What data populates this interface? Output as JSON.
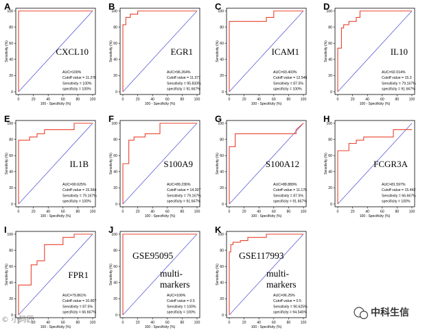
{
  "chart_data": [
    {
      "type": "line",
      "panel": "A",
      "name": "CXCL10",
      "stats": [
        "AUC=100%",
        "Cutoff value = 11.278",
        "Sensitivity = 100%",
        "specificity = 100%"
      ],
      "x": [
        0,
        0,
        100
      ],
      "y": [
        0,
        100,
        100
      ]
    },
    {
      "type": "line",
      "panel": "B",
      "name": "EGR1",
      "stats": [
        "AUC=96.264%",
        "Cutoff value = 11.377",
        "Sensitivity = 95.833%",
        "specificity = 91.667%"
      ],
      "x": [
        0,
        0,
        4,
        4,
        10,
        10,
        20,
        20,
        100
      ],
      "y": [
        0,
        83,
        83,
        92,
        92,
        96,
        96,
        100,
        100
      ]
    },
    {
      "type": "line",
      "panel": "C",
      "name": "ICAM1",
      "stats": [
        "AUC=93.403%",
        "Cutoff value = 12.546",
        "Sensitivity = 87.5%",
        "specificity = 100%"
      ],
      "x": [
        0,
        0,
        50,
        50,
        60,
        60,
        100
      ],
      "y": [
        0,
        87,
        87,
        92,
        92,
        100,
        100
      ]
    },
    {
      "type": "line",
      "panel": "D",
      "name": "IL10",
      "stats": [
        "AUC=92.014%",
        "Cutoff value = 15.3",
        "Sensitivity = 79.167%",
        "specificity = 91.667%"
      ],
      "x": [
        0,
        0,
        5,
        5,
        8,
        8,
        15,
        15,
        20,
        20,
        25,
        25,
        30,
        30,
        100
      ],
      "y": [
        0,
        54,
        54,
        79,
        79,
        83,
        83,
        87,
        87,
        87,
        87,
        92,
        92,
        100,
        100
      ]
    },
    {
      "type": "line",
      "panel": "E",
      "name": "IL1B",
      "stats": [
        "AUC=90.625%",
        "Cutoff value = 15.564",
        "Sensitivity = 79.167%",
        "specificity = 100%"
      ],
      "x": [
        0,
        0,
        15,
        15,
        25,
        25,
        35,
        35,
        75,
        75,
        100
      ],
      "y": [
        0,
        79,
        79,
        83,
        83,
        87,
        87,
        92,
        92,
        100,
        100
      ]
    },
    {
      "type": "line",
      "panel": "F",
      "name": "S100A9",
      "stats": [
        "AUC=89.236%",
        "Cutoff value = 14.307",
        "Sensitivity = 79.167%",
        "specificity = 91.667%"
      ],
      "x": [
        0,
        0,
        8,
        8,
        15,
        15,
        30,
        30,
        50,
        50,
        100
      ],
      "y": [
        0,
        50,
        50,
        79,
        79,
        83,
        83,
        87,
        87,
        100,
        100
      ]
    },
    {
      "type": "line",
      "panel": "G",
      "name": "S100A12",
      "stats": [
        "AUC=88.889%",
        "Cutoff value = 11.176",
        "Sensitivity = 87.5%",
        "specificity = 91.667%"
      ],
      "x": [
        0,
        0,
        8,
        8,
        90,
        90,
        100
      ],
      "y": [
        0,
        71,
        71,
        87,
        87,
        92,
        100
      ]
    },
    {
      "type": "line",
      "panel": "H",
      "name": "FCGR3A",
      "stats": [
        "AUC=81.597%",
        "Cutoff value = 15.442",
        "Sensitivity = 66.667%",
        "specificity = 100%"
      ],
      "x": [
        0,
        0,
        15,
        15,
        25,
        25,
        35,
        35,
        75,
        75,
        100
      ],
      "y": [
        0,
        66,
        66,
        75,
        75,
        79,
        79,
        83,
        83,
        92,
        92
      ]
    },
    {
      "type": "line",
      "panel": "I",
      "name": "FPR1",
      "stats": [
        "AUC=79.861%",
        "Cutoff value = 10.807",
        "Sensitivity = 87.5%",
        "specificity = 66.667%"
      ],
      "x": [
        0,
        0,
        17,
        17,
        25,
        25,
        35,
        35,
        60,
        60,
        75,
        75,
        100
      ],
      "y": [
        0,
        37,
        37,
        62,
        62,
        67,
        67,
        87,
        87,
        96,
        96,
        100,
        100
      ]
    },
    {
      "type": "line",
      "panel": "J",
      "name": "GSE95095 multi-markers",
      "title": "GSE95095",
      "subtitle": [
        "multi-",
        "markers"
      ],
      "stats": [
        "AUC=100%",
        "Cutoff value = 0.5",
        "Sensitivity = 100%",
        "specificity = 100%"
      ],
      "x": [
        0,
        0,
        100
      ],
      "y": [
        0,
        100,
        100
      ]
    },
    {
      "type": "line",
      "panel": "K",
      "name": "GSE117993 multi-markers",
      "title": "GSE117993",
      "subtitle": [
        "multi-",
        "markers"
      ],
      "stats": [
        "AUC=96.25%",
        "Cutoff value = 0.5",
        "Sensitivity = 90.625%",
        "specificity = 94.545%"
      ],
      "x": [
        0,
        0,
        2,
        2,
        5,
        5,
        15,
        15,
        25,
        25,
        50,
        50,
        100
      ],
      "y": [
        0,
        78,
        78,
        87,
        87,
        90,
        90,
        92,
        92,
        96,
        96,
        100,
        100
      ]
    }
  ],
  "axes": {
    "xlabel": "100 - Specificity (%)",
    "ylabel": "Sensitivity (%)",
    "ticks": [
      "0",
      "20",
      "40",
      "60",
      "80",
      "100"
    ],
    "xlim": [
      0,
      100
    ],
    "ylim": [
      0,
      100
    ]
  },
  "colors": {
    "roc": "#e8402a",
    "diag": "#5a5ad6",
    "frame": "#000000"
  },
  "watermark": {
    "left": "© 小码匠",
    "right": "中科生信"
  }
}
